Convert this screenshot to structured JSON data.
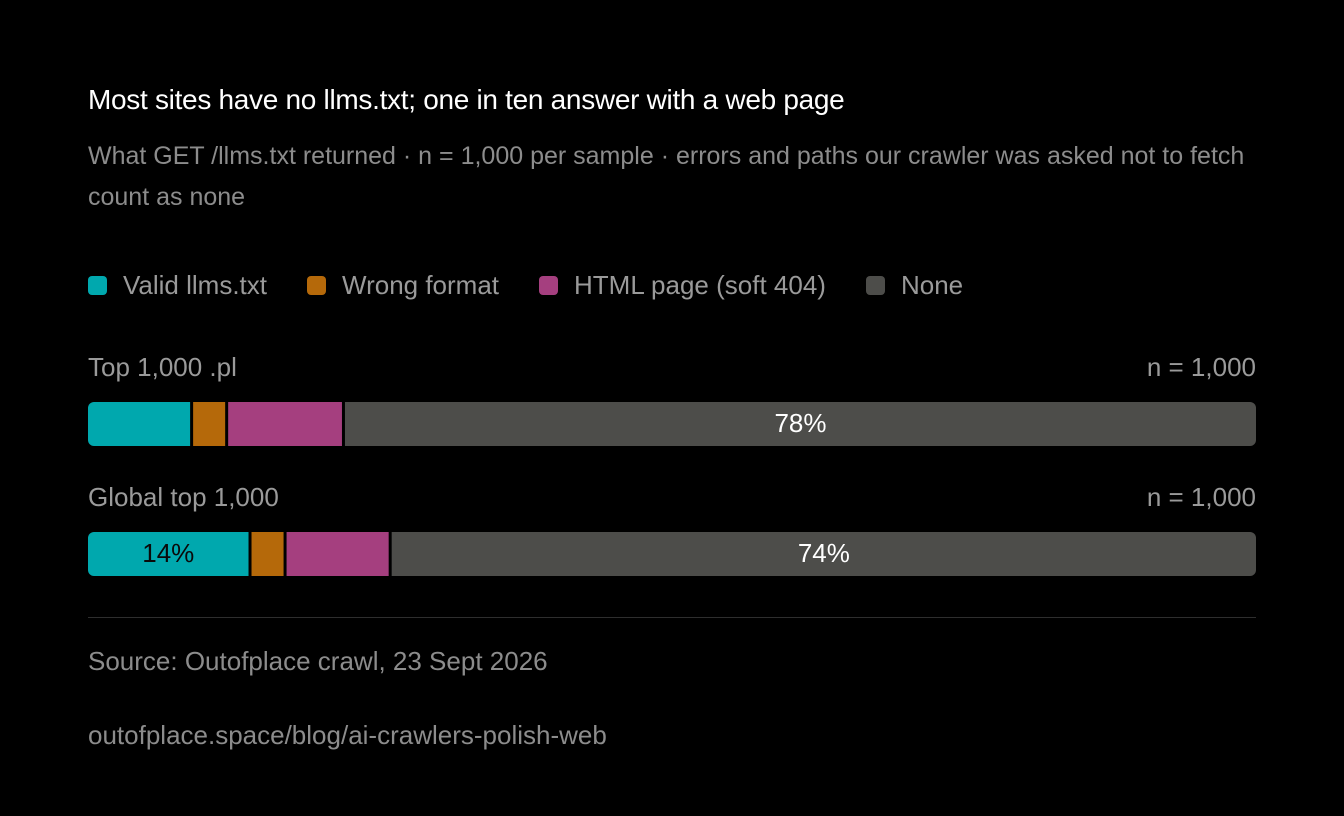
{
  "chart_data": {
    "type": "stacked-bar-horizontal",
    "title": "Most sites have no llms.txt; one in ten answer with a web page",
    "subtitle": "What GET /llms.txt returned · n = 1,000 per sample · errors and paths our crawler was asked not to fetch count as none",
    "categories": [
      "Top 1,000 .pl",
      "Global top 1,000"
    ],
    "row_notes": [
      "n = 1,000",
      "n = 1,000"
    ],
    "xlim": [
      0,
      100
    ],
    "series": [
      {
        "name": "Valid llms.txt",
        "color": "#00a8ae",
        "values": [
          9,
          14
        ],
        "value_labels": [
          null,
          "14%"
        ]
      },
      {
        "name": "Wrong format",
        "color": "#b5690a",
        "values": [
          3,
          3
        ]
      },
      {
        "name": "HTML page (soft 404)",
        "color": "#a53f7f",
        "values": [
          10,
          9
        ]
      },
      {
        "name": "None",
        "color": "#4d4d4a",
        "values": [
          78,
          74
        ],
        "value_labels": [
          "78%",
          "74%"
        ]
      }
    ],
    "source": "Source: Outofplace crawl, 23 Sept 2026",
    "url": "outofplace.space/blog/ai-crawlers-polish-web"
  }
}
